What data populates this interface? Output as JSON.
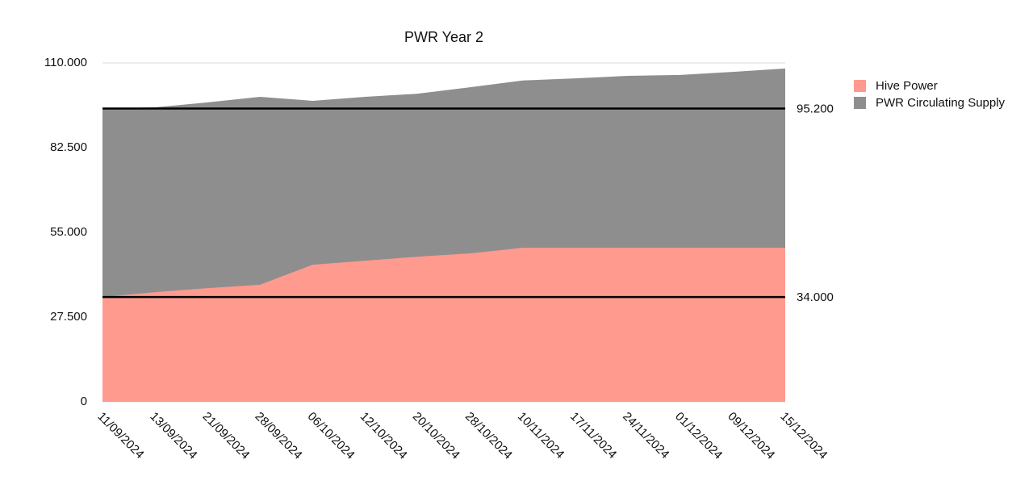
{
  "chart_data": {
    "type": "area",
    "title": "PWR Year 2",
    "categories": [
      "11/09/2024",
      "13/09/2024",
      "21/09/2024",
      "28/09/2024",
      "06/10/2024",
      "12/10/2024",
      "20/10/2024",
      "28/10/2024",
      "10/11/2024",
      "17/11/2024",
      "24/11/2024",
      "01/12/2024",
      "09/12/2024",
      "15/12/2024"
    ],
    "series": [
      {
        "name": "Hive Power",
        "color": "#ff9a8e",
        "values": [
          34000,
          35600,
          36900,
          38000,
          44500,
          45800,
          47100,
          48200,
          50000,
          50000,
          50000,
          50000,
          50000,
          50000
        ]
      },
      {
        "name": "PWR Circulating Supply",
        "color": "#8e8e8e",
        "values": [
          95200,
          95600,
          97200,
          99000,
          97700,
          99000,
          100000,
          102100,
          104300,
          105000,
          105800,
          106100,
          107100,
          108200
        ]
      }
    ],
    "ylim": [
      0,
      110000
    ],
    "yticks": [
      0,
      {
        "value": 27500,
        "label": "27.500"
      },
      {
        "value": 55000,
        "label": "55.000"
      },
      {
        "value": 82500,
        "label": "82.500"
      },
      {
        "value": 110000,
        "label": "110.000"
      }
    ],
    "reference_lines": [
      {
        "value": 95200,
        "label": "95.200"
      },
      {
        "value": 34000,
        "label": "34.000"
      }
    ],
    "grid": true,
    "legend": "top-right"
  }
}
